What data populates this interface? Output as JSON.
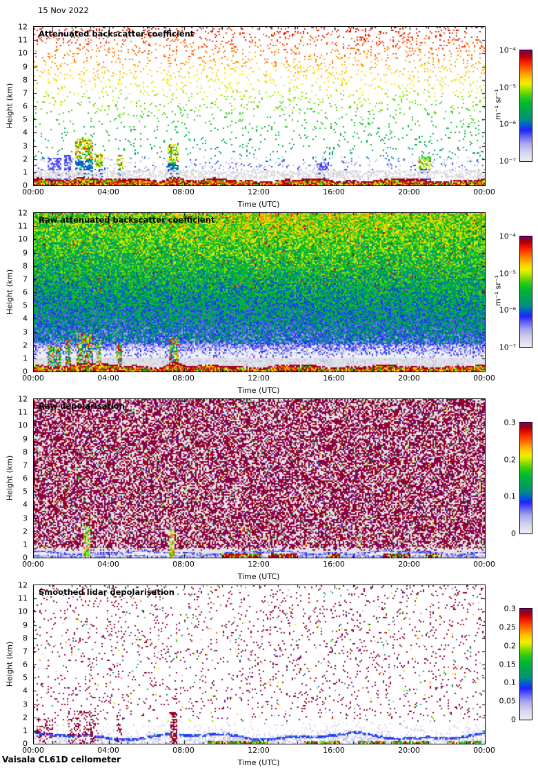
{
  "page": {
    "date": "15 Nov 2022",
    "footer": "Vaisala CL61D ceilometer"
  },
  "colormap": {
    "description": "jet-like colormap, low values pale lavender through blue, green, yellow, red to purple at maximum",
    "stops": [
      [
        0.0,
        "#eeecf6"
      ],
      [
        0.08,
        "#d4d4ee"
      ],
      [
        0.16,
        "#a8a8ee"
      ],
      [
        0.22,
        "#6868f4"
      ],
      [
        0.28,
        "#2222fc"
      ],
      [
        0.33,
        "#0060d0"
      ],
      [
        0.38,
        "#00917f"
      ],
      [
        0.45,
        "#00a455"
      ],
      [
        0.52,
        "#00b830"
      ],
      [
        0.58,
        "#30cc10"
      ],
      [
        0.63,
        "#80dc00"
      ],
      [
        0.67,
        "#c8e800"
      ],
      [
        0.7,
        "#f0f000"
      ],
      [
        0.75,
        "#ffc800"
      ],
      [
        0.8,
        "#ff9000"
      ],
      [
        0.85,
        "#ff5000"
      ],
      [
        0.9,
        "#f01800"
      ],
      [
        0.94,
        "#c00000"
      ],
      [
        0.97,
        "#900020"
      ],
      [
        1.0,
        "#7c007c"
      ]
    ]
  },
  "chart_data": {
    "type": "heatmap",
    "title": "15 Nov 2022",
    "instrument": "Vaisala CL61D ceilometer",
    "x_axis": {
      "label": "Time (UTC)",
      "range_hours": [
        0,
        24
      ],
      "tick_labels": [
        "00:00",
        "04:00",
        "08:00",
        "12:00",
        "16:00",
        "20:00",
        "00:00"
      ],
      "minor_tick_hours": 1
    },
    "y_axis": {
      "label": "Height (km)",
      "range_km": [
        0,
        12
      ],
      "tick_labels": [
        "0",
        "1",
        "2",
        "3",
        "4",
        "5",
        "6",
        "7",
        "8",
        "9",
        "10",
        "11",
        "12"
      ]
    },
    "panels": [
      {
        "title": "Attenuated backscatter coefficient",
        "ylabel": "Height (km)",
        "xlabel": "Time (UTC)",
        "render": "sparse-backscatter",
        "seed": 11,
        "colorbar": {
          "scale": "log",
          "min": 1e-07,
          "max": 0.0001,
          "unit": "m⁻¹ sr⁻¹",
          "tick_labels": [
            "10⁻⁴",
            "10⁻⁵",
            "10⁻⁶",
            "10⁻⁷"
          ],
          "tick_pos": [
            1,
            0.667,
            0.333,
            0
          ]
        },
        "description": "Sparse noise speckle over white, value increasing with height (red near 12 km to pale blue near 2 km); aerosol boundary layer below ~0.5 km capped by dark red line; grey residual band 0.5-1 km; low cloud/precip columns 00:30-03:30, ~04:30, ~07:30, ~15:00 and ~20:30 reaching 2-4 km",
        "features": {
          "clouds": [
            {
              "x0": 0.03,
              "x1": 0.062,
              "h": 2.1,
              "t": 0.22,
              "hot": false
            },
            {
              "x0": 0.068,
              "x1": 0.082,
              "h": 2.3,
              "t": 0.24,
              "hot": false
            },
            {
              "x0": 0.093,
              "x1": 0.132,
              "h": 3.6,
              "t": 0.34,
              "hot": true
            },
            {
              "x0": 0.136,
              "x1": 0.152,
              "h": 2.4,
              "t": 0.28,
              "hot": true
            },
            {
              "x0": 0.183,
              "x1": 0.198,
              "h": 2.3,
              "t": 0.3,
              "hot": true
            },
            {
              "x0": 0.296,
              "x1": 0.322,
              "h": 3.1,
              "t": 0.34,
              "hot": true
            },
            {
              "x0": 0.628,
              "x1": 0.655,
              "h": 1.8,
              "t": 0.24,
              "hot": false
            },
            {
              "x0": 0.853,
              "x1": 0.882,
              "h": 2.2,
              "t": 0.28,
              "hot": true
            }
          ]
        }
      },
      {
        "title": "Raw attenuated backscatter coefficient",
        "ylabel": "Height (km)",
        "xlabel": "Time (UTC)",
        "render": "dense-backscatter",
        "seed": 22,
        "colorbar": {
          "scale": "log",
          "min": 1e-07,
          "max": 0.0001,
          "unit": "m⁻¹ sr⁻¹",
          "tick_labels": [
            "10⁻⁴",
            "10⁻⁵",
            "10⁻⁶",
            "10⁻⁷"
          ],
          "tick_pos": [
            1,
            0.667,
            0.333,
            0
          ]
        },
        "description": "Dense range-corrected noise: green/yellow with orange patches near 8-12 km (strongest 09:00-18:00), teal/green mid-levels, blue below 4 km fading to pale background under 2 km; red-orange boundary layer below ~0.5 km; colourful cloud columns 00:30-03:30 and ~07:30",
        "features": {
          "clouds": [
            {
              "x0": 0.03,
              "x1": 0.06,
              "h": 2.0
            },
            {
              "x0": 0.07,
              "x1": 0.082,
              "h": 2.4
            },
            {
              "x0": 0.095,
              "x1": 0.13,
              "h": 2.9
            },
            {
              "x0": 0.137,
              "x1": 0.15,
              "h": 2.5
            },
            {
              "x0": 0.185,
              "x1": 0.196,
              "h": 2.2
            },
            {
              "x0": 0.3,
              "x1": 0.32,
              "h": 2.6
            }
          ]
        }
      },
      {
        "title": "Raw depolarisation",
        "ylabel": "Height (km)",
        "xlabel": "Time (UTC)",
        "render": "dense-depol",
        "seed": 33,
        "colorbar": {
          "scale": "linear",
          "min": 0,
          "max": 0.3,
          "unit": "",
          "tick_labels": [
            "0.3",
            "0.2",
            "0.1",
            "0"
          ],
          "tick_pos": [
            1,
            0.667,
            0.333,
            0
          ]
        },
        "description": "Dense purple noise speckle (depolarisation pegged near 0.3) over grey above ~0.8 km with scattered colourful outliers; pale band with wavy blue line near 0.3-0.5 km; dark red patches at the surface around 11:00-14:30, 16:00, 19:00 and 21:00; green/orange streaks ~02:45 and ~07:30",
        "features": {
          "streaks": [
            {
              "x0": 0.11,
              "x1": 0.126,
              "h": 2.4
            },
            {
              "x0": 0.3,
              "x1": 0.313,
              "h": 2.2
            }
          ],
          "patches": [
            {
              "x0": 0.415,
              "x1": 0.505
            },
            {
              "x0": 0.52,
              "x1": 0.585
            },
            {
              "x0": 0.65,
              "x1": 0.68
            },
            {
              "x0": 0.775,
              "x1": 0.835
            },
            {
              "x0": 0.87,
              "x1": 0.905
            }
          ]
        }
      },
      {
        "title": "Smoothed lidar depolarisation",
        "ylabel": "Height (km)",
        "xlabel": "Time (UTC)",
        "render": "sparse-depol",
        "seed": 44,
        "colorbar": {
          "scale": "linear",
          "min": 0,
          "max": 0.3,
          "unit": "",
          "tick_labels": [
            "0.3",
            "0.25",
            "0.2",
            "0.15",
            "0.1",
            "0.05",
            "0"
          ],
          "tick_pos": [
            1,
            0.833,
            0.667,
            0.5,
            0.333,
            0.167,
            0
          ]
        },
        "description": "Sparse purple speckle over white with occasional coloured dots; pale blue fuzzy layer below ~1 km with wavy blue line; dense purple clusters 00:00-03:30 and ~07:30 up to ~2.5 km; green/red surface segments around 09:30-12:30, 14:30-16:30, 17:30-19:00, 19:00-21:00 and after 22:00",
        "features": {
          "clusters": [
            {
              "x0": 0.005,
              "x1": 0.05,
              "h": 2.0,
              "p": 0.3,
              "mix": false
            },
            {
              "x0": 0.075,
              "x1": 0.145,
              "h": 2.5,
              "p": 0.3,
              "mix": false
            },
            {
              "x0": 0.185,
              "x1": 0.196,
              "h": 2.2,
              "p": 0.3,
              "mix": false
            },
            {
              "x0": 0.302,
              "x1": 0.318,
              "h": 2.4,
              "p": 0.6,
              "mix": true
            }
          ],
          "ground_segments": [
            {
              "x0": 0.385,
              "x1": 0.52
            },
            {
              "x0": 0.6,
              "x1": 0.68
            },
            {
              "x0": 0.72,
              "x1": 0.78
            },
            {
              "x0": 0.795,
              "x1": 0.875
            },
            {
              "x0": 0.92,
              "x1": 0.995
            }
          ]
        }
      }
    ]
  }
}
